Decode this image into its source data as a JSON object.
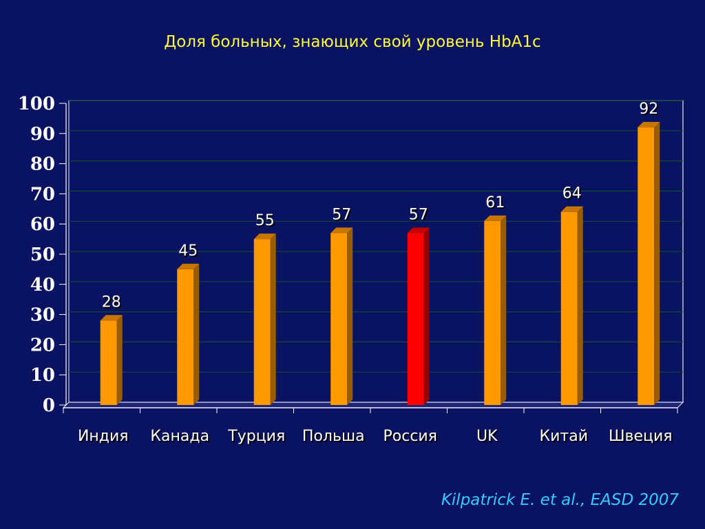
{
  "slide": {
    "title": "Доля больных, знающих свой уровень HbA1c",
    "citation": "Kilpatrick E. et al., EASD 2007"
  },
  "colors": {
    "background": "#0a1262",
    "title": "#ffff33",
    "citation": "#33ccff",
    "bar_default": "#ff9900",
    "bar_highlight": "#ff0000",
    "text": "#ffffff"
  },
  "chart_data": {
    "type": "bar",
    "title": "Доля больных, знающих свой уровень HbA1c",
    "categories": [
      "Индия",
      "Канада",
      "Турция",
      "Польша",
      "Россия",
      "UK",
      "Китай",
      "Швеция"
    ],
    "values": [
      28,
      45,
      55,
      57,
      57,
      61,
      64,
      92
    ],
    "data_labels": [
      "28",
      "45",
      "55",
      "57",
      "57",
      "61",
      "64",
      "92"
    ],
    "highlight_category": "Россия",
    "ylim": [
      0,
      100
    ],
    "yticks": [
      0,
      10,
      20,
      30,
      40,
      50,
      60,
      70,
      80,
      90,
      100
    ],
    "grid": true,
    "bar_style": "3d"
  }
}
